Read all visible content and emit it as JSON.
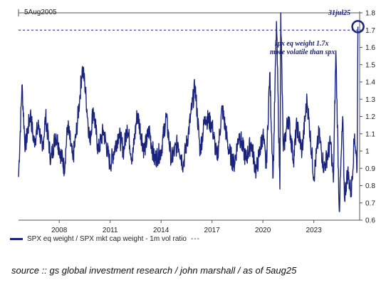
{
  "chart_data": {
    "type": "line",
    "start_label": "5Aug2005",
    "end_label": "31jul25",
    "annotation_lines": [
      "spx eq weight 1.7x",
      "more volatile than spx"
    ],
    "x_ticks": [
      "2008",
      "2011",
      "2014",
      "2017",
      "2020",
      "2023"
    ],
    "y_ticks": [
      0.6,
      0.7,
      0.8,
      0.9,
      1,
      1.1,
      1.2,
      1.3,
      1.4,
      1.5,
      1.6,
      1.7,
      1.8
    ],
    "ylim": [
      0.6,
      1.8
    ],
    "xlim": [
      2005.6,
      2025.7
    ],
    "reference_line": 1.7,
    "legend": "SPX eq weight / SPX mkt cap weight - 1m vol ratio",
    "color": "#1a237e",
    "series": [
      {
        "name": "SPX eq weight / SPX mkt cap weight - 1m vol ratio",
        "x": [
          2005.6,
          2005.8,
          2006.0,
          2006.3,
          2006.5,
          2006.8,
          2007.0,
          2007.2,
          2007.5,
          2007.8,
          2008.0,
          2008.3,
          2008.5,
          2008.8,
          2009.0,
          2009.2,
          2009.35,
          2009.5,
          2009.8,
          2010.0,
          2010.3,
          2010.6,
          2011.0,
          2011.5,
          2011.8,
          2012.0,
          2012.3,
          2012.6,
          2013.0,
          2013.3,
          2013.6,
          2014.0,
          2014.3,
          2014.6,
          2015.0,
          2015.3,
          2015.6,
          2016.0,
          2016.3,
          2016.6,
          2017.0,
          2017.3,
          2017.6,
          2018.0,
          2018.3,
          2018.6,
          2019.0,
          2019.3,
          2019.6,
          2020.0,
          2020.2,
          2020.4,
          2020.6,
          2020.8,
          2021.0,
          2021.05,
          2021.2,
          2021.5,
          2021.8,
          2022.0,
          2022.3,
          2022.6,
          2023.0,
          2023.3,
          2023.6,
          2024.0,
          2024.15,
          2024.3,
          2024.5,
          2024.7,
          2024.8,
          2025.0,
          2025.2,
          2025.4,
          2025.55,
          2025.6
        ],
        "values": [
          0.85,
          1.38,
          1.02,
          1.22,
          1.05,
          1.15,
          1.0,
          1.2,
          0.95,
          1.1,
          1.02,
          0.9,
          1.15,
          0.95,
          1.1,
          1.3,
          1.48,
          1.4,
          1.05,
          1.25,
          1.0,
          1.12,
          0.92,
          1.1,
          1.0,
          1.15,
          0.95,
          1.22,
          1.0,
          1.12,
          0.95,
          1.0,
          1.2,
          0.95,
          1.05,
          0.92,
          1.1,
          1.38,
          1.0,
          1.2,
          1.15,
          0.95,
          1.25,
          1.0,
          0.92,
          1.1,
          0.95,
          1.05,
          0.88,
          1.1,
          0.9,
          1.45,
          0.85,
          1.75,
          0.78,
          1.8,
          1.0,
          1.2,
          0.95,
          1.15,
          1.0,
          1.3,
          0.85,
          1.1,
          0.9,
          1.05,
          0.82,
          1.58,
          0.65,
          1.2,
          0.73,
          0.88,
          0.75,
          1.1,
          0.9,
          1.72
        ]
      }
    ]
  },
  "source": "source :: gs global investment research / john marshall / as of 5aug25"
}
